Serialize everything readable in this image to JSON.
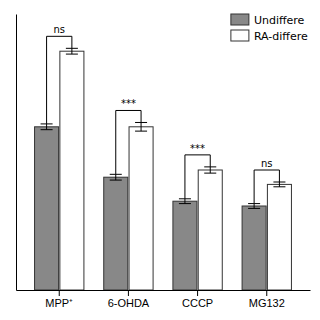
{
  "chart_data": {
    "type": "bar",
    "categories": [
      "MPP⁺",
      "6-OHDA",
      "CCCP",
      "MG132"
    ],
    "series": [
      {
        "name": "Undiffere",
        "color": "#888888",
        "values": [
          0.68,
          0.47,
          0.37,
          0.35
        ],
        "errors": [
          0.012,
          0.012,
          0.01,
          0.01
        ]
      },
      {
        "name": "RA-differe",
        "color": "#ffffff",
        "values": [
          0.995,
          0.68,
          0.5,
          0.44
        ],
        "errors": [
          0.012,
          0.018,
          0.013,
          0.01
        ]
      }
    ],
    "annotations": [
      "ns",
      "***",
      "***",
      "ns"
    ],
    "ylim": [
      0,
      1.15
    ],
    "tick_labels": "x",
    "legend": "upper right"
  }
}
